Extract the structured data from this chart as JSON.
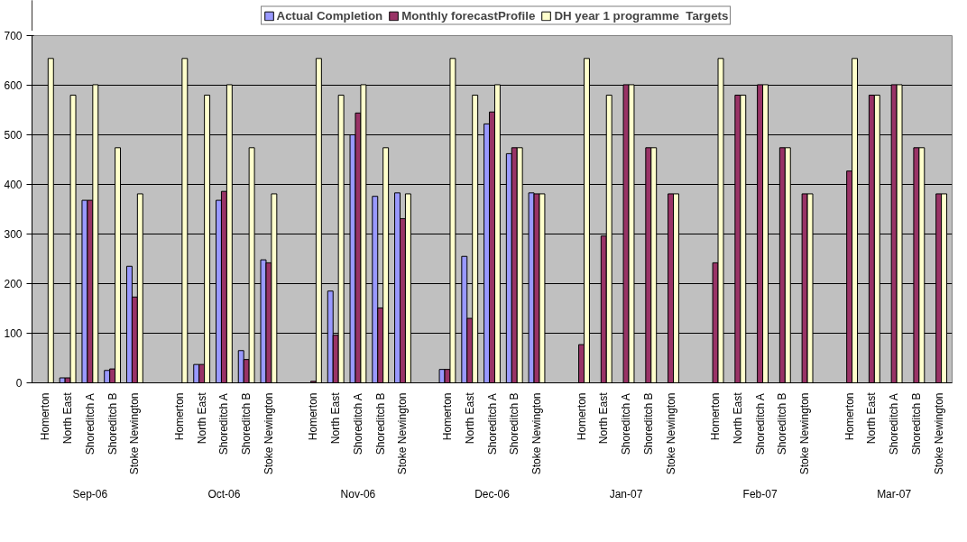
{
  "chart_data": {
    "type": "bar",
    "categories": [
      "Homerton",
      "North East",
      "Shoreditch A",
      "Shoreditch B",
      "Stoke Newington",
      null,
      "Homerton",
      "North East",
      "Shoreditch A",
      "Shoreditch B",
      "Stoke Newington",
      null,
      "Homerton",
      "North East",
      "Shoreditch A",
      "Shoreditch B",
      "Stoke Newington",
      null,
      "Homerton",
      "North East",
      "Shoreditch A",
      "Shoreditch B",
      "Stoke Newington",
      null,
      "Homerton",
      "North East",
      "Shoreditch A",
      "Shoreditch B",
      "Stoke Newington",
      null,
      "Homerton",
      "North East",
      "Shoreditch A",
      "Shoreditch B",
      "Stoke Newington",
      null,
      "Homerton",
      "North East",
      "Shoreditch A",
      "Shoreditch B",
      "Stoke Newington"
    ],
    "series": [
      {
        "name": "Actual Completion",
        "color": "#9999ff",
        "values": [
          null,
          10,
          368,
          25,
          235,
          null,
          null,
          37,
          368,
          65,
          248,
          null,
          null,
          185,
          500,
          376,
          383,
          null,
          27,
          255,
          522,
          462,
          383,
          null,
          null,
          null,
          null,
          null,
          null,
          null,
          null,
          null,
          null,
          null,
          null,
          null,
          null,
          null,
          null,
          null,
          null
        ]
      },
      {
        "name": "Monthly forecastProfile",
        "color": "#993366",
        "values": [
          null,
          10,
          368,
          28,
          173,
          null,
          null,
          37,
          386,
          47,
          242,
          null,
          3,
          96,
          544,
          151,
          331,
          null,
          27,
          130,
          546,
          474,
          381,
          null,
          77,
          296,
          601,
          474,
          381,
          null,
          242,
          580,
          601,
          474,
          381,
          null,
          427,
          580,
          601,
          474,
          381
        ]
      },
      {
        "name": "DH year 1 programme  Targets",
        "color": "#ffffcc",
        "values": [
          654,
          580,
          601,
          474,
          381,
          null,
          654,
          580,
          601,
          474,
          381,
          null,
          654,
          580,
          601,
          474,
          381,
          null,
          654,
          580,
          601,
          474,
          381,
          null,
          654,
          580,
          601,
          474,
          381,
          null,
          654,
          580,
          601,
          474,
          381,
          null,
          654,
          580,
          601,
          474,
          381
        ]
      }
    ],
    "annotations": [
      "Sep-06",
      "Oct-06",
      "Nov-06",
      "Dec-06",
      "Jan-07",
      "Feb-07",
      "Mar-07"
    ],
    "ylim": [
      0,
      700
    ],
    "yticks": [
      0,
      100,
      200,
      300,
      400,
      500,
      600,
      700
    ],
    "grid": "y",
    "legend": "top"
  }
}
